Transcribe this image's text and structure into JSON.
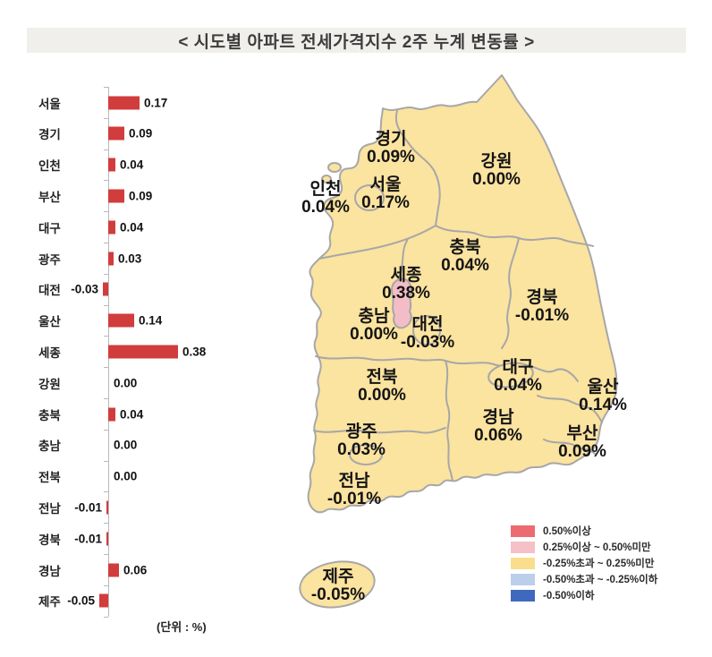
{
  "title": "< 시도별 아파트 전세가격지수 2주 누계 변동률 >",
  "unit_note": "(단위 : %)",
  "chart_data": {
    "type": "bar",
    "orientation": "horizontal",
    "title": "시도별 아파트 전세가격지수 2주 누계 변동률",
    "unit": "%",
    "bar_color": "#d13c3c",
    "categories": [
      "서울",
      "경기",
      "인천",
      "부산",
      "대구",
      "광주",
      "대전",
      "울산",
      "세종",
      "강원",
      "충북",
      "충남",
      "전북",
      "전남",
      "경북",
      "경남",
      "제주"
    ],
    "values": [
      0.17,
      0.09,
      0.04,
      0.09,
      0.04,
      0.03,
      -0.03,
      0.14,
      0.38,
      0.0,
      0.04,
      0.0,
      0.0,
      -0.01,
      -0.01,
      0.06,
      -0.05
    ],
    "value_labels": [
      "0.17",
      "0.09",
      "0.04",
      "0.09",
      "0.04",
      "0.03",
      "-0.03",
      "0.14",
      "0.38",
      "0.00",
      "0.04",
      "0.00",
      "0.00",
      "-0.01",
      "-0.01",
      "0.06",
      "-0.05"
    ]
  },
  "map": {
    "colors": {
      "default_fill": "#fbe3a0",
      "sejong_fill": "#f3bdc7",
      "border": "#a7a7a7"
    },
    "regions": [
      {
        "id": "gyeonggi",
        "name": "경기",
        "value": "0.09%"
      },
      {
        "id": "gangwon",
        "name": "강원",
        "value": "0.00%"
      },
      {
        "id": "incheon",
        "name": "인천",
        "value": "0.04%"
      },
      {
        "id": "seoul",
        "name": "서울",
        "value": "0.17%"
      },
      {
        "id": "chungbuk",
        "name": "충북",
        "value": "0.04%"
      },
      {
        "id": "sejong",
        "name": "세종",
        "value": "0.38%"
      },
      {
        "id": "gyeongbuk",
        "name": "경북",
        "value": "-0.01%"
      },
      {
        "id": "chungnam",
        "name": "충남",
        "value": "0.00%"
      },
      {
        "id": "daejeon",
        "name": "대전",
        "value": "-0.03%"
      },
      {
        "id": "jeonbuk",
        "name": "전북",
        "value": "0.00%"
      },
      {
        "id": "daegu",
        "name": "대구",
        "value": "0.04%"
      },
      {
        "id": "ulsan",
        "name": "울산",
        "value": "0.14%"
      },
      {
        "id": "gwangju",
        "name": "광주",
        "value": "0.03%"
      },
      {
        "id": "gyeongnam",
        "name": "경남",
        "value": "0.06%"
      },
      {
        "id": "busan",
        "name": "부산",
        "value": "0.09%"
      },
      {
        "id": "jeonnam",
        "name": "전남",
        "value": "-0.01%"
      },
      {
        "id": "jeju",
        "name": "제주",
        "value": "-0.05%"
      }
    ]
  },
  "legend": {
    "items": [
      {
        "label": "0.50%이상",
        "color": "#ec6b70"
      },
      {
        "label": "0.25%이상 ~ 0.50%미만",
        "color": "#f5c1c6"
      },
      {
        "label": "-0.25%초과 ~ 0.25%미만",
        "color": "#fbde8d"
      },
      {
        "label": "-0.50%초과 ~ -0.25%이하",
        "color": "#bccfea"
      },
      {
        "label": "-0.50%이하",
        "color": "#3f69be"
      }
    ]
  }
}
